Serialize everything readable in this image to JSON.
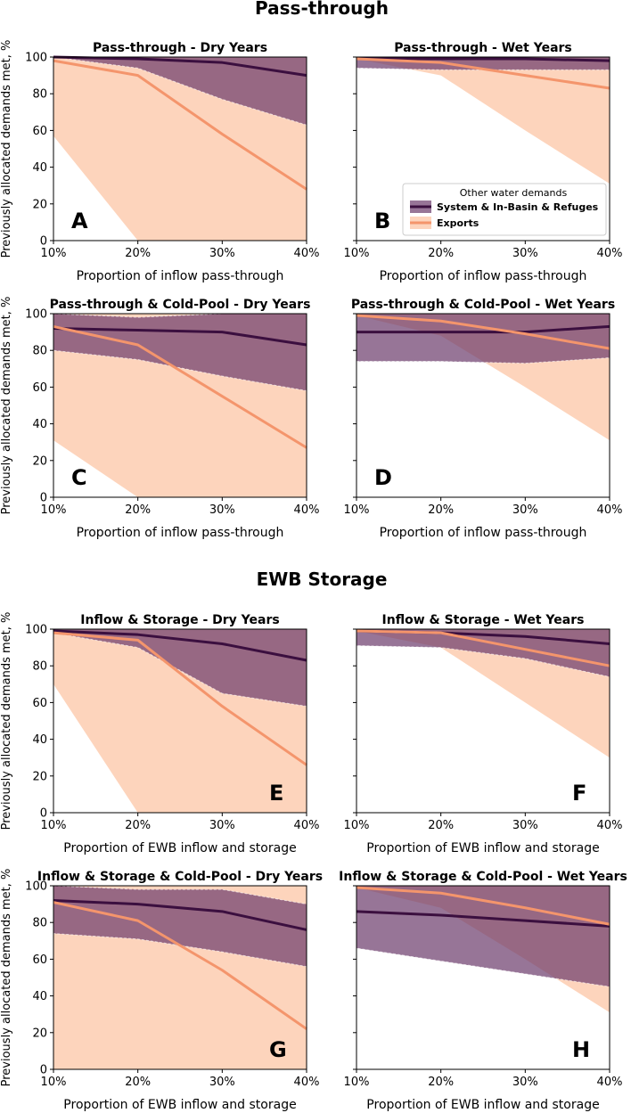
{
  "colors": {
    "system_line": "#3b0f3f",
    "system_band": "#6b3a6b",
    "exports_line": "#f4956c",
    "exports_band": "#fcb88f"
  },
  "sections": [
    {
      "title": "Pass-through"
    },
    {
      "title": "EWB Storage"
    }
  ],
  "legend": {
    "title": "Other water demands",
    "entries": [
      "System & In-Basin & Refuges",
      "Exports"
    ]
  },
  "chart_data": [
    {
      "type": "area",
      "letter": "A",
      "title": "Pass-through - Dry Years",
      "xlabel": "Proportion of inflow pass-through",
      "ylabel": "Previously allocated demands met, %",
      "categories": [
        "10%",
        "20%",
        "30%",
        "40%"
      ],
      "ylim": [
        0,
        100
      ],
      "yticks": [
        0,
        20,
        40,
        60,
        80,
        100
      ],
      "series": [
        {
          "name": "System & In-Basin & Refuges",
          "values": [
            100,
            99,
            97,
            90
          ],
          "lower": [
            100,
            94,
            77,
            63
          ],
          "upper": [
            100,
            100,
            100,
            100
          ]
        },
        {
          "name": "Exports",
          "values": [
            98,
            90,
            58,
            28
          ],
          "lower": [
            57,
            0,
            0,
            0
          ],
          "upper": [
            100,
            100,
            100,
            100
          ]
        }
      ]
    },
    {
      "type": "area",
      "letter": "B",
      "title": "Pass-through - Wet Years",
      "xlabel": "Proportion of inflow pass-through",
      "ylabel": "",
      "categories": [
        "10%",
        "20%",
        "30%",
        "40%"
      ],
      "ylim": [
        0,
        100
      ],
      "yticks": [],
      "series": [
        {
          "name": "System & In-Basin & Refuges",
          "values": [
            99,
            99,
            99,
            98
          ],
          "lower": [
            94,
            93,
            93,
            93
          ],
          "upper": [
            100,
            100,
            100,
            100
          ]
        },
        {
          "name": "Exports",
          "values": [
            99,
            97,
            90,
            83
          ],
          "lower": [
            99,
            90,
            60,
            31
          ],
          "upper": [
            100,
            100,
            100,
            100
          ]
        }
      ]
    },
    {
      "type": "area",
      "letter": "C",
      "title": "Pass-through & Cold-Pool - Dry Years",
      "xlabel": "Proportion of inflow pass-through",
      "ylabel": "Previously allocated demands met, %",
      "categories": [
        "10%",
        "20%",
        "30%",
        "40%"
      ],
      "ylim": [
        0,
        100
      ],
      "yticks": [
        0,
        20,
        40,
        60,
        80,
        100
      ],
      "series": [
        {
          "name": "System & In-Basin & Refuges",
          "values": [
            92,
            91,
            90,
            83
          ],
          "lower": [
            80,
            75,
            66,
            58
          ],
          "upper": [
            100,
            98,
            100,
            100
          ]
        },
        {
          "name": "Exports",
          "values": [
            93,
            83,
            55,
            27
          ],
          "lower": [
            31,
            0,
            0,
            0
          ],
          "upper": [
            100,
            100,
            100,
            100
          ]
        }
      ]
    },
    {
      "type": "area",
      "letter": "D",
      "title": "Pass-through & Cold-Pool - Wet Years",
      "xlabel": "Proportion of inflow pass-through",
      "ylabel": "",
      "categories": [
        "10%",
        "20%",
        "30%",
        "40%"
      ],
      "ylim": [
        0,
        100
      ],
      "yticks": [],
      "series": [
        {
          "name": "System & In-Basin & Refuges",
          "values": [
            90,
            90,
            90,
            93
          ],
          "lower": [
            74,
            74,
            73,
            76
          ],
          "upper": [
            100,
            100,
            100,
            100
          ]
        },
        {
          "name": "Exports",
          "values": [
            99,
            96,
            89,
            81
          ],
          "lower": [
            99,
            88,
            60,
            31
          ],
          "upper": [
            100,
            100,
            100,
            100
          ]
        }
      ]
    },
    {
      "type": "area",
      "letter": "E",
      "title": "Inflow & Storage - Dry Years",
      "xlabel": "Proportion of EWB inflow and storage",
      "ylabel": "Previously allocated demands met, %",
      "categories": [
        "10%",
        "20%",
        "30%",
        "40%"
      ],
      "ylim": [
        0,
        100
      ],
      "yticks": [
        0,
        20,
        40,
        60,
        80,
        100
      ],
      "series": [
        {
          "name": "System & In-Basin & Refuges",
          "values": [
            99,
            97,
            92,
            83
          ],
          "lower": [
            98,
            90,
            65,
            58
          ],
          "upper": [
            100,
            100,
            100,
            100
          ]
        },
        {
          "name": "Exports",
          "values": [
            98,
            94,
            58,
            26
          ],
          "lower": [
            70,
            0,
            0,
            0
          ],
          "upper": [
            100,
            100,
            100,
            100
          ]
        }
      ]
    },
    {
      "type": "area",
      "letter": "F",
      "title": "Inflow & Storage - Wet Years",
      "xlabel": "Proportion of EWB inflow and storage",
      "ylabel": "",
      "categories": [
        "10%",
        "20%",
        "30%",
        "40%"
      ],
      "ylim": [
        0,
        100
      ],
      "yticks": [],
      "series": [
        {
          "name": "System & In-Basin & Refuges",
          "values": [
            99,
            98,
            96,
            92
          ],
          "lower": [
            91,
            90,
            84,
            74
          ],
          "upper": [
            100,
            100,
            100,
            100
          ]
        },
        {
          "name": "Exports",
          "values": [
            99,
            98,
            89,
            80
          ],
          "lower": [
            99,
            90,
            60,
            30
          ],
          "upper": [
            100,
            100,
            100,
            100
          ]
        }
      ]
    },
    {
      "type": "area",
      "letter": "G",
      "title": "Inflow & Storage & Cold-Pool - Dry Years",
      "xlabel": "Proportion of EWB inflow and storage",
      "ylabel": "Previously allocated demands met, %",
      "categories": [
        "10%",
        "20%",
        "30%",
        "40%"
      ],
      "ylim": [
        0,
        100
      ],
      "yticks": [
        0,
        20,
        40,
        60,
        80,
        100
      ],
      "series": [
        {
          "name": "System & In-Basin & Refuges",
          "values": [
            92,
            90,
            86,
            76
          ],
          "lower": [
            74,
            71,
            64,
            56
          ],
          "upper": [
            100,
            98,
            98,
            90
          ]
        },
        {
          "name": "Exports",
          "values": [
            91,
            81,
            54,
            22
          ],
          "lower": [
            0,
            0,
            0,
            0
          ],
          "upper": [
            100,
            100,
            100,
            100
          ]
        }
      ]
    },
    {
      "type": "area",
      "letter": "H",
      "title": "Inflow & Storage & Cold-Pool - Wet Years",
      "xlabel": "Proportion of EWB inflow and storage",
      "ylabel": "",
      "categories": [
        "10%",
        "20%",
        "30%",
        "40%"
      ],
      "ylim": [
        0,
        100
      ],
      "yticks": [],
      "series": [
        {
          "name": "System & In-Basin & Refuges",
          "values": [
            86,
            84,
            81,
            78
          ],
          "lower": [
            66,
            59,
            52,
            45
          ],
          "upper": [
            100,
            100,
            100,
            100
          ]
        },
        {
          "name": "Exports",
          "values": [
            99,
            96,
            88,
            79
          ],
          "lower": [
            99,
            88,
            60,
            31
          ],
          "upper": [
            100,
            100,
            100,
            100
          ]
        }
      ]
    }
  ]
}
